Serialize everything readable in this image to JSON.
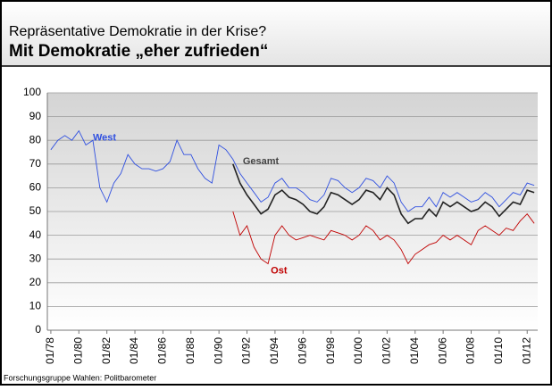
{
  "chart_data": {
    "type": "line",
    "title": "Repräsentative Demokratie in der Krise?",
    "subtitle": "Mit Demokratie „eher zufrieden“",
    "source": "Forschungsgruppe Wahlen: Politbarometer",
    "x": [
      "1978-01",
      "1978-07",
      "1979-01",
      "1979-07",
      "1980-01",
      "1980-07",
      "1981-01",
      "1981-07",
      "1982-01",
      "1982-07",
      "1983-01",
      "1983-07",
      "1984-01",
      "1984-07",
      "1985-01",
      "1985-07",
      "1986-01",
      "1986-07",
      "1987-01",
      "1987-07",
      "1988-01",
      "1988-07",
      "1989-01",
      "1989-07",
      "1990-01",
      "1990-07",
      "1991-01",
      "1991-07",
      "1992-01",
      "1992-07",
      "1993-01",
      "1993-07",
      "1994-01",
      "1994-07",
      "1995-01",
      "1995-07",
      "1996-01",
      "1996-07",
      "1997-01",
      "1997-07",
      "1998-01",
      "1998-07",
      "1999-01",
      "1999-07",
      "2000-01",
      "2000-07",
      "2001-01",
      "2001-07",
      "2002-01",
      "2002-07",
      "2003-01",
      "2003-07",
      "2004-01",
      "2004-07",
      "2005-01",
      "2005-07",
      "2006-01",
      "2006-07",
      "2007-01",
      "2007-07",
      "2008-01",
      "2008-07",
      "2009-01",
      "2009-07",
      "2010-01",
      "2010-07",
      "2011-01",
      "2011-07",
      "2012-01",
      "2012-07"
    ],
    "series": [
      {
        "name": "West",
        "color": "#3050e0",
        "values": [
          76,
          80,
          82,
          80,
          84,
          78,
          80,
          60,
          54,
          62,
          66,
          74,
          70,
          68,
          68,
          67,
          68,
          71,
          80,
          74,
          74,
          68,
          64,
          62,
          78,
          76,
          72,
          66,
          62,
          58,
          54,
          56,
          62,
          64,
          60,
          60,
          58,
          55,
          54,
          57,
          64,
          63,
          60,
          58,
          60,
          64,
          63,
          60,
          65,
          62,
          54,
          50,
          52,
          52,
          56,
          52,
          58,
          56,
          58,
          56,
          54,
          55,
          58,
          56,
          52,
          55,
          58,
          57,
          62,
          61
        ]
      },
      {
        "name": "Gesamt",
        "color": "#222222",
        "values": [
          null,
          null,
          null,
          null,
          null,
          null,
          null,
          null,
          null,
          null,
          null,
          null,
          null,
          null,
          null,
          null,
          null,
          null,
          null,
          null,
          null,
          null,
          null,
          null,
          null,
          null,
          70,
          62,
          57,
          53,
          49,
          51,
          57,
          59,
          56,
          55,
          53,
          50,
          49,
          52,
          58,
          57,
          55,
          53,
          55,
          59,
          58,
          55,
          60,
          57,
          49,
          45,
          47,
          47,
          51,
          48,
          54,
          52,
          54,
          52,
          50,
          51,
          54,
          52,
          48,
          51,
          54,
          53,
          59,
          58
        ]
      },
      {
        "name": "Ost",
        "color": "#c00000",
        "values": [
          null,
          null,
          null,
          null,
          null,
          null,
          null,
          null,
          null,
          null,
          null,
          null,
          null,
          null,
          null,
          null,
          null,
          null,
          null,
          null,
          null,
          null,
          null,
          null,
          null,
          null,
          50,
          40,
          44,
          35,
          30,
          28,
          40,
          44,
          40,
          38,
          39,
          40,
          39,
          38,
          42,
          41,
          40,
          38,
          40,
          44,
          42,
          38,
          40,
          38,
          34,
          28,
          32,
          34,
          36,
          37,
          40,
          38,
          40,
          38,
          36,
          42,
          44,
          42,
          40,
          43,
          42,
          46,
          49,
          45
        ]
      }
    ],
    "xlim": [
      "1977-10",
      "2012-10"
    ],
    "xticks": [
      {
        "value": "1978-01",
        "label": "01/78"
      },
      {
        "value": "1980-01",
        "label": "01/80"
      },
      {
        "value": "1982-01",
        "label": "01/82"
      },
      {
        "value": "1984-01",
        "label": "01/84"
      },
      {
        "value": "1986-01",
        "label": "01/86"
      },
      {
        "value": "1988-01",
        "label": "01/88"
      },
      {
        "value": "1990-01",
        "label": "01/90"
      },
      {
        "value": "1992-01",
        "label": "01/92"
      },
      {
        "value": "1994-01",
        "label": "01/94"
      },
      {
        "value": "1996-01",
        "label": "01/96"
      },
      {
        "value": "1998-01",
        "label": "01/98"
      },
      {
        "value": "2000-01",
        "label": "01/00"
      },
      {
        "value": "2002-01",
        "label": "01/02"
      },
      {
        "value": "2004-01",
        "label": "01/04"
      },
      {
        "value": "2006-01",
        "label": "01/06"
      },
      {
        "value": "2008-01",
        "label": "01/08"
      },
      {
        "value": "2010-01",
        "label": "01/10"
      },
      {
        "value": "2012-01",
        "label": "01/12"
      }
    ],
    "ylim": [
      0,
      100
    ],
    "yticks": [
      0,
      10,
      20,
      30,
      40,
      50,
      60,
      70,
      80,
      90,
      100
    ],
    "grid": true
  }
}
